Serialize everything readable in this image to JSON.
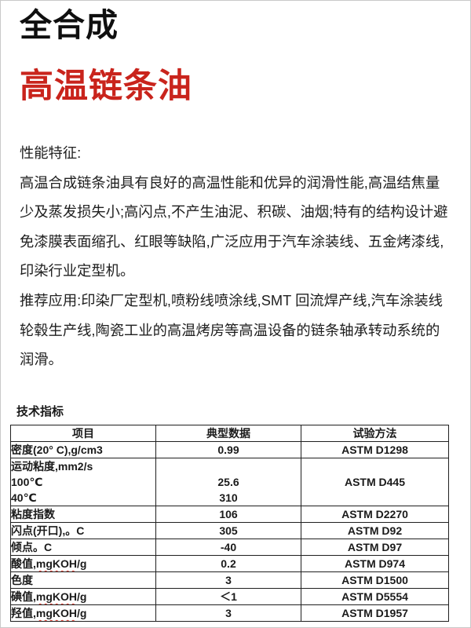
{
  "page": {
    "title_black": "全合成",
    "title_red": "高温链条油",
    "accent_color": "#c9241c"
  },
  "sections": {
    "features_heading": "性能特征:",
    "features_body": "高温合成链条油具有良好的高温性能和优异的润滑性能,高温结焦量少及蒸发损失小;高闪点,不产生油泥、积碳、油烟;特有的结构设计避免漆膜表面缩孔、红眼等缺陷,广泛应用于汽车涂装线、五金烤漆线,印染行业定型机。",
    "applications_body": "推荐应用:印染厂定型机,喷粉线喷涂线,SMT 回流焊产线,汽车涂装线轮毂生产线,陶瓷工业的高温烤房等高温设备的链条轴承转动系统的润滑。",
    "table_heading": "技术指标"
  },
  "table": {
    "columns": [
      "项目",
      "典型数据",
      "试验方法"
    ],
    "rows": [
      {
        "item": "密度(20° C),g/cm3",
        "value": "0.99",
        "method": "ASTM D1298"
      },
      {
        "item_lines": [
          "运动粘度,mm2/s",
          "100℃",
          "40℃"
        ],
        "value_lines": [
          "",
          "25.6",
          "310"
        ],
        "method": "ASTM D445"
      },
      {
        "item": "粘度指数",
        "value": "106",
        "method": "ASTM D2270"
      },
      {
        "item": "闪点(开口),。C",
        "value": "305",
        "method": "ASTM D92"
      },
      {
        "item": "倾点。C",
        "value": "-40",
        "method": "ASTM D97"
      },
      {
        "item": "酸值,mgKOH/g",
        "squiggle": "mgKOH",
        "value": "0.2",
        "method": "ASTM D974"
      },
      {
        "item": "色度",
        "value": "3",
        "method": "ASTM D1500"
      },
      {
        "item": "碘值,mgKOH/g",
        "squiggle": "mgKOH",
        "value": "＜1",
        "method": "ASTM D5554"
      },
      {
        "item": "羟值,mgKOH/g",
        "squiggle": "mgKOH",
        "value": "3",
        "method": "ASTM D1957"
      }
    ]
  }
}
